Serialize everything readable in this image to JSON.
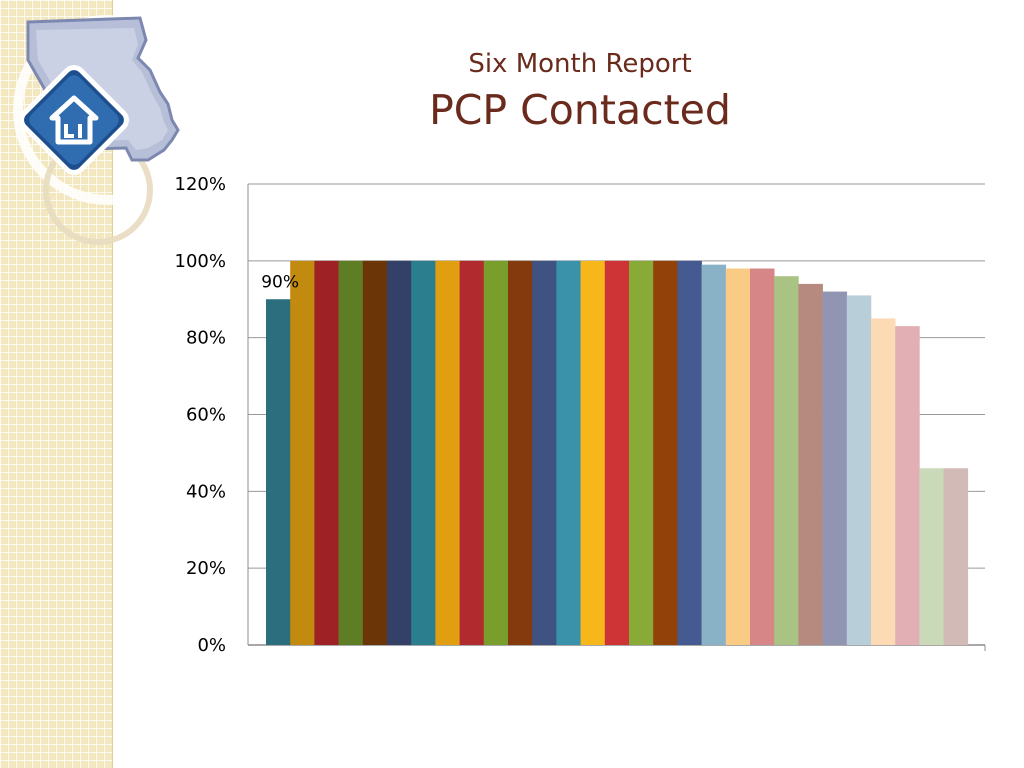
{
  "slide": {
    "subtitle": "Six Month Report",
    "title": "PCP Contacted"
  },
  "logo": {
    "icon": "missouri-house-logo-icon"
  },
  "chart_data": {
    "type": "bar",
    "title": "PCP Contacted",
    "subtitle": "Six Month Report",
    "xlabel": "",
    "ylabel": "",
    "ylim": [
      0,
      1.2
    ],
    "y_ticks": [
      "0%",
      "20%",
      "40%",
      "60%",
      "80%",
      "100%",
      "120%"
    ],
    "grid": true,
    "legend": "none",
    "values": [
      0.9,
      1.0,
      1.0,
      1.0,
      1.0,
      1.0,
      1.0,
      1.0,
      1.0,
      1.0,
      1.0,
      1.0,
      1.0,
      1.0,
      1.0,
      1.0,
      1.0,
      1.0,
      0.99,
      0.98,
      0.98,
      0.96,
      0.94,
      0.92,
      0.91,
      0.85,
      0.83,
      0.46,
      0.46
    ],
    "colors": [
      "#2c6e7e",
      "#c28a0e",
      "#9e2225",
      "#5e7e26",
      "#6c3508",
      "#334169",
      "#2b7e8e",
      "#e09e10",
      "#b02a2e",
      "#7a9e2c",
      "#843a0c",
      "#3f5282",
      "#3a92aa",
      "#f7b71a",
      "#ce3436",
      "#8aaa38",
      "#924209",
      "#445a90",
      "#8ab2c6",
      "#facb84",
      "#d68686",
      "#a9c384",
      "#b68a7e",
      "#9295b2",
      "#b8ced8",
      "#fcdab4",
      "#e2b0b4",
      "#cadab8",
      "#d2bab6"
    ],
    "data_labels": [
      {
        "index": 0,
        "text": "90%"
      }
    ]
  }
}
